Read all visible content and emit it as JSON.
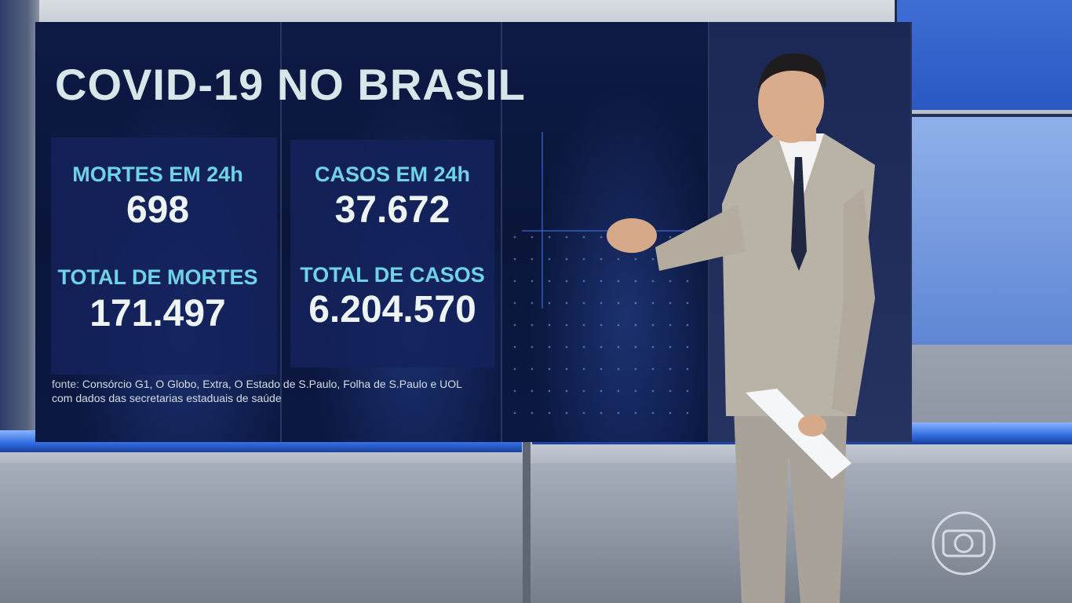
{
  "headline": "COVID-19 NO BRASIL",
  "stats": {
    "deaths_24h": {
      "label": "MORTES EM 24h",
      "value": "698"
    },
    "cases_24h": {
      "label": "CASOS EM 24h",
      "value": "37.672"
    },
    "total_deaths": {
      "label": "TOTAL DE MORTES",
      "value": "171.497"
    },
    "total_cases": {
      "label": "TOTAL DE CASOS",
      "value": "6.204.570"
    }
  },
  "source": {
    "lead": "fonte:",
    "line1": "Consórcio G1, O Globo, Extra, O Estado de S.Paulo, Folha de S.Paulo e UOL",
    "line2": "com dados das secretarias estaduais de saúde"
  },
  "colors": {
    "label": "#6fd3e6",
    "value": "#eef4f4",
    "screen_bg": "#0e1a46",
    "suit": "#b9b2a6",
    "studio_blue": "#2f6be0"
  },
  "icons": {
    "broadcaster_logo": "globo-logo-icon"
  }
}
